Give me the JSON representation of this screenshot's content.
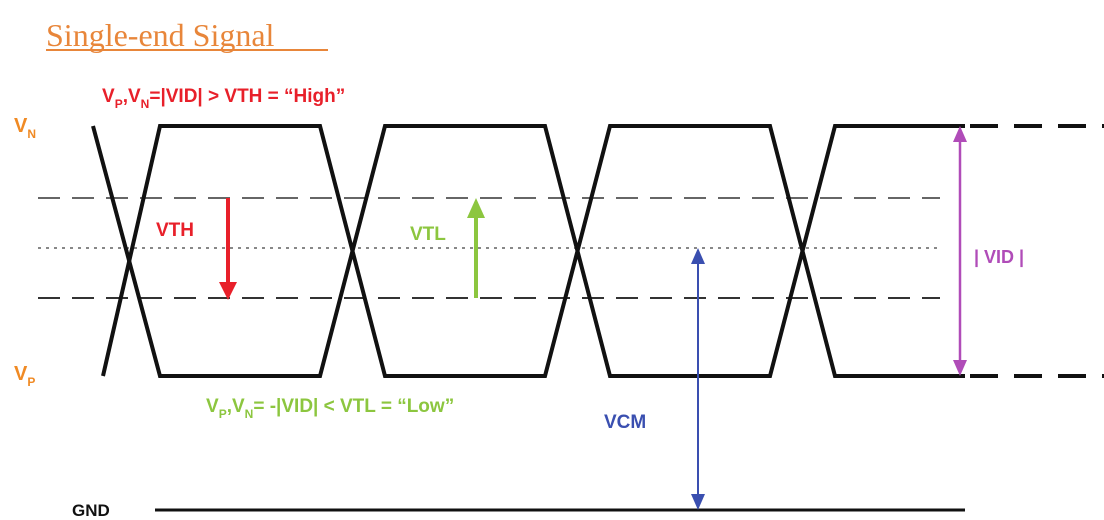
{
  "title": "Single-end Signal",
  "high_condition": {
    "sub_p": "P",
    "sep": ",",
    "sub_n": "N",
    "rest": "=|VID| > VTH = “High”"
  },
  "low_condition": {
    "sub_p": "P",
    "sep": ",",
    "sub_n": "N",
    "rest": "= -|VID| < VTL = “Low”"
  },
  "vn_label": {
    "main": "V",
    "sub": "N"
  },
  "vp_label": {
    "main": "V",
    "sub": "P"
  },
  "vth_label": "VTH",
  "vtl_label": "VTL",
  "vid_label": "| VID |",
  "vcm_label": "VCM",
  "gnd_label": "GND",
  "colors": {
    "title": "#e8863a",
    "high": "#e8202a",
    "low": "#8cc63f",
    "rail_label": "#f08a24",
    "vid": "#b04cb8",
    "vcm": "#3a4fb0",
    "signal": "#111111"
  }
}
